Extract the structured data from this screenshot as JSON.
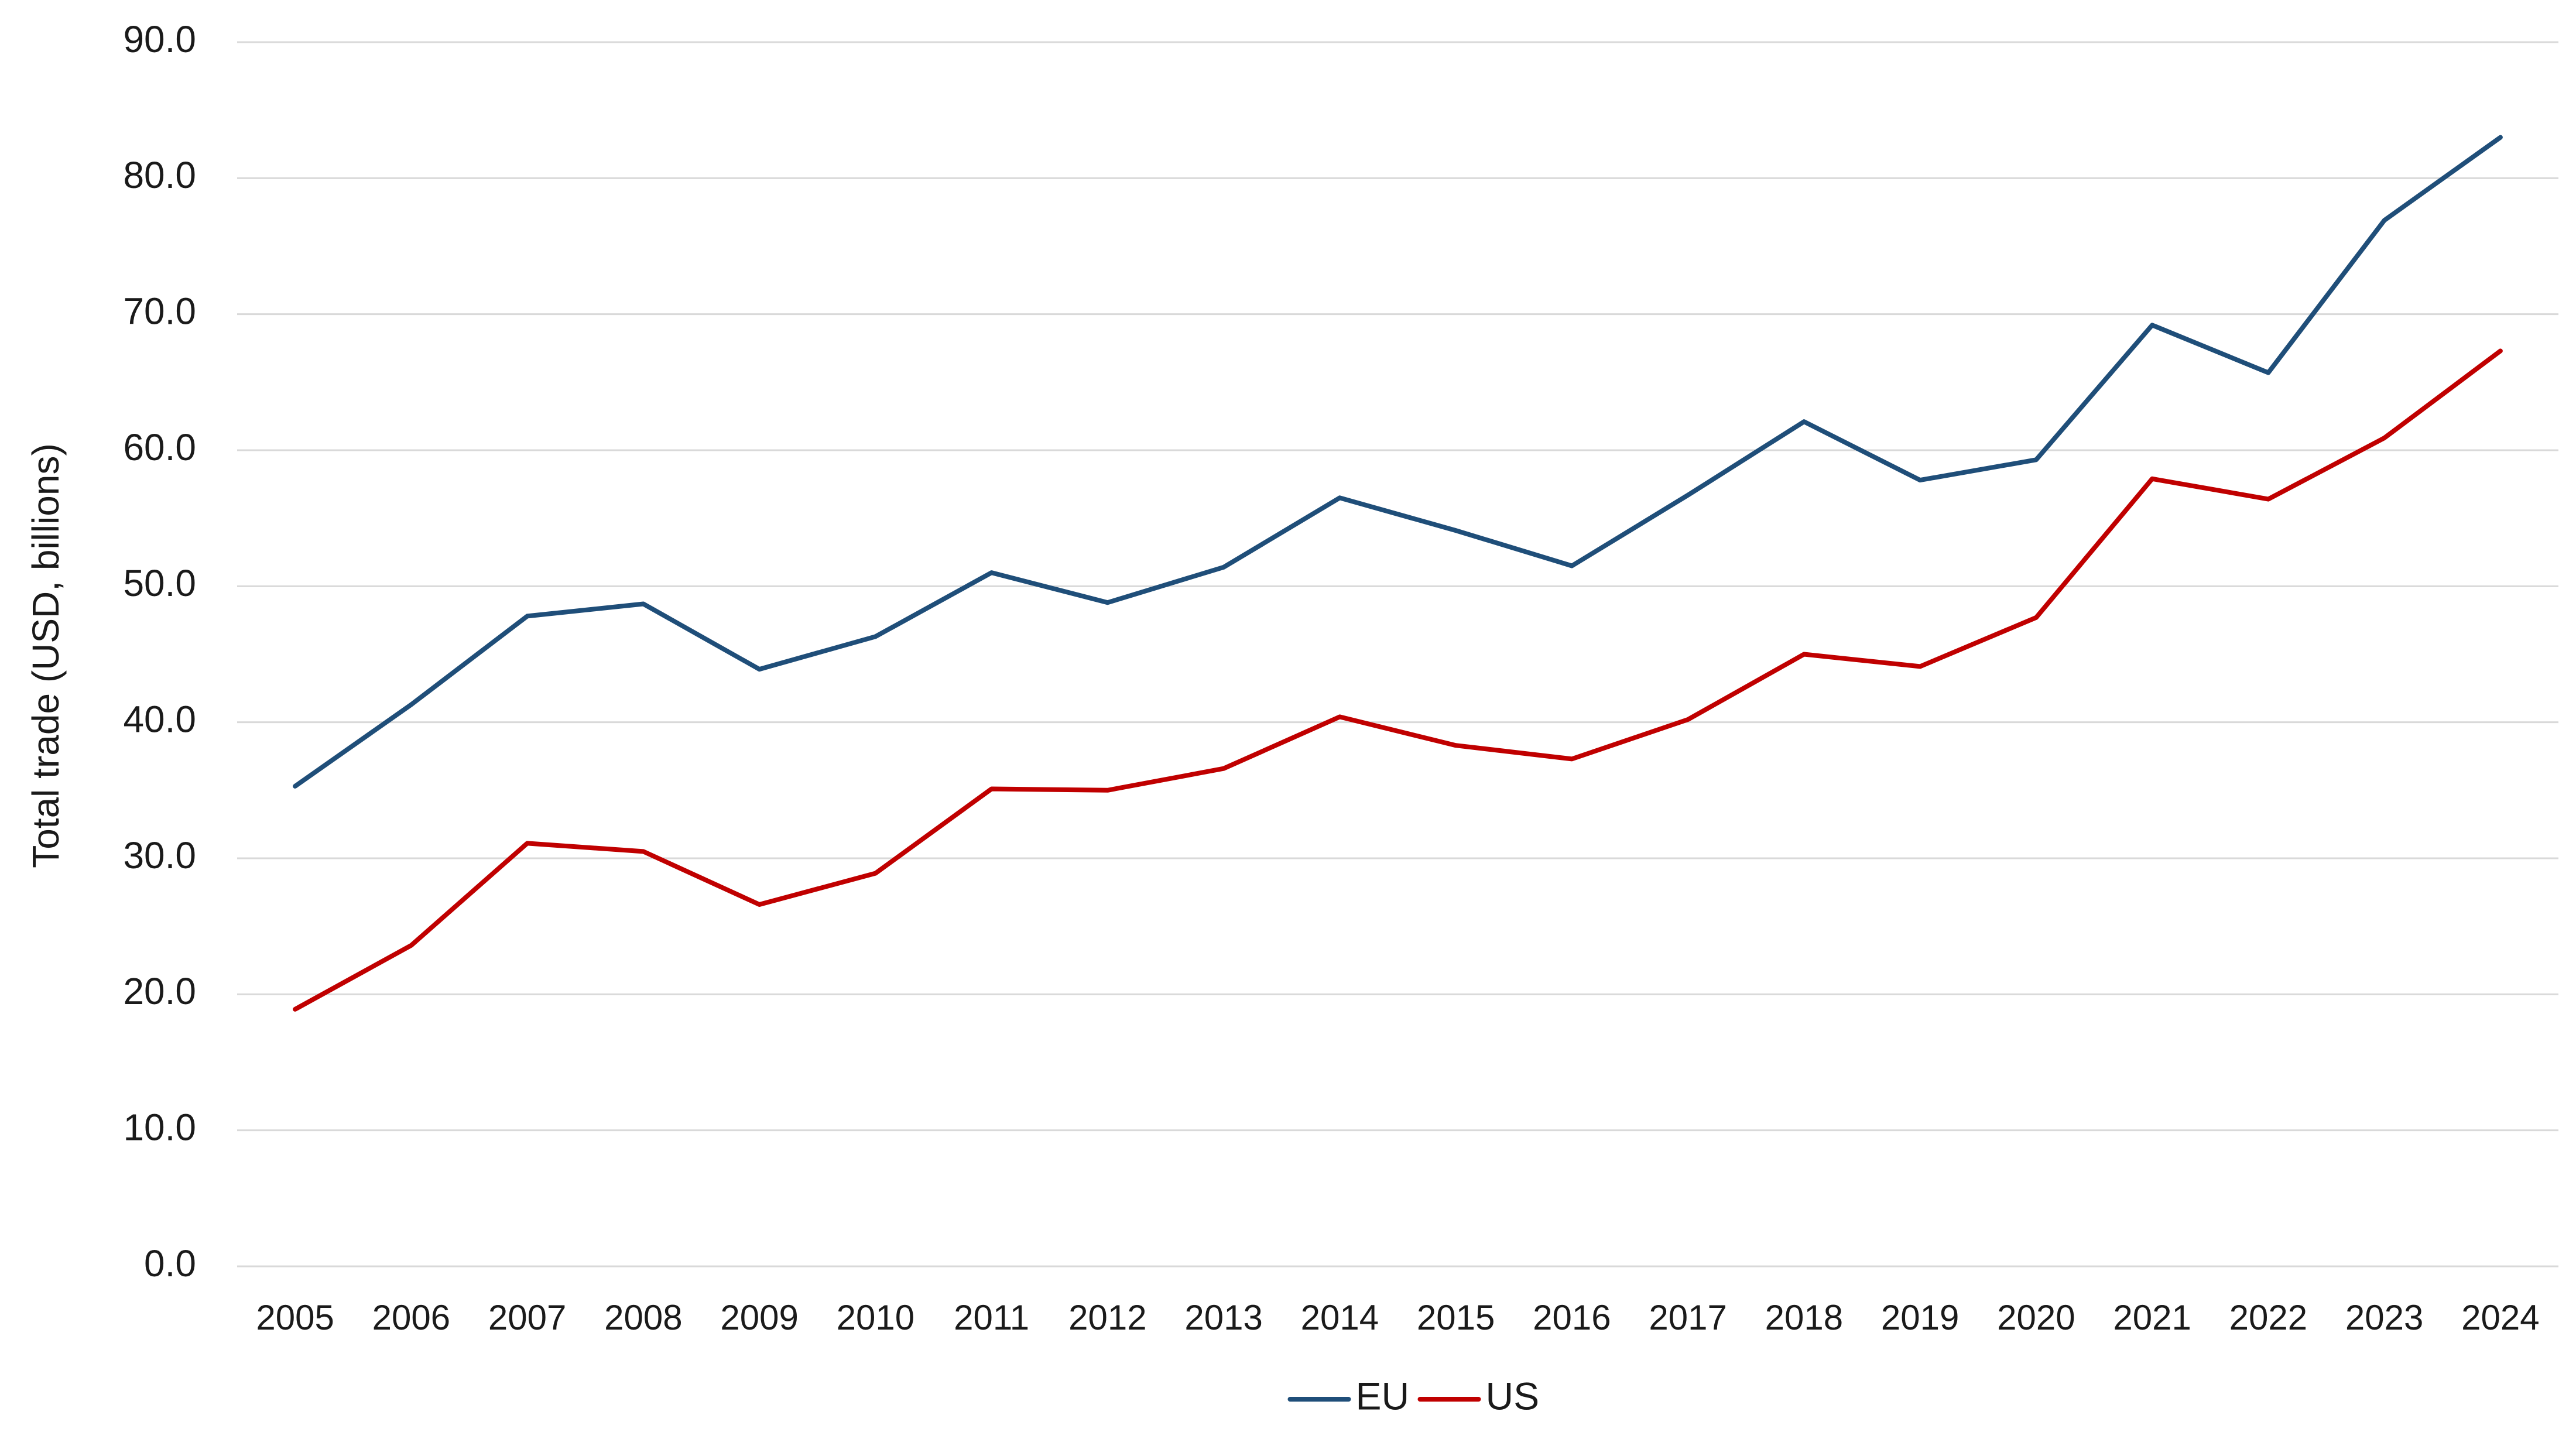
{
  "chart_data": {
    "type": "line",
    "title": "",
    "xlabel": "",
    "ylabel": "Total trade (USD, billions)",
    "ylim": [
      0,
      90
    ],
    "yticks": [
      "0.0",
      "10.0",
      "20.0",
      "30.0",
      "40.0",
      "50.0",
      "60.0",
      "70.0",
      "80.0",
      "90.0"
    ],
    "grid": true,
    "legend_position": "bottom",
    "categories": [
      "2005",
      "2006",
      "2007",
      "2008",
      "2009",
      "2010",
      "2011",
      "2012",
      "2013",
      "2014",
      "2015",
      "2016",
      "2017",
      "2018",
      "2019",
      "2020",
      "2021",
      "2022",
      "2023",
      "2024"
    ],
    "series": [
      {
        "name": "EU",
        "color": "#1f4e79",
        "values": [
          35.3,
          41.3,
          47.8,
          48.7,
          43.9,
          46.3,
          51.0,
          48.8,
          51.4,
          56.5,
          54.1,
          51.5,
          56.7,
          62.1,
          57.8,
          59.3,
          69.2,
          65.7,
          76.9,
          83.0
        ]
      },
      {
        "name": "US",
        "color": "#c00000",
        "values": [
          18.9,
          23.6,
          31.1,
          30.5,
          26.6,
          28.9,
          35.1,
          35.0,
          36.6,
          40.4,
          38.3,
          37.3,
          40.2,
          45.0,
          44.1,
          47.7,
          57.9,
          56.4,
          60.9,
          67.3
        ]
      }
    ]
  }
}
